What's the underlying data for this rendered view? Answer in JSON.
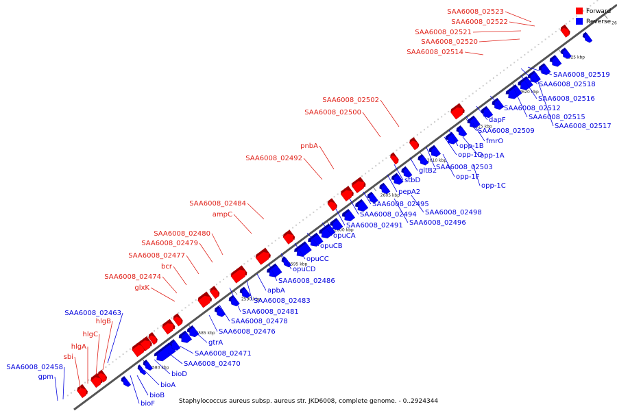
{
  "caption": "Staphylococcus aureus subsp. aureus str. JKD6008, complete genome. - 0..2924344",
  "legend": [
    {
      "label": "Forward",
      "color": "#ff0000"
    },
    {
      "label": "Reverse",
      "color": "#0000ff"
    }
  ],
  "ticks": [
    "2580 kbp",
    "2585 kbp",
    "2590 kbp",
    "2595 kbp",
    "2600 kbp",
    "2605 kbp",
    "2610 kbp",
    "2615 kbp",
    "2620 kbp",
    "2625 kbp",
    "2630 kbp",
    "2635 kbp",
    "2640 kbp",
    "2645 kbp",
    "2650 kbp"
  ],
  "forward_labels": [
    "SAA6008_02523",
    "SAA6008_02522",
    "SAA6008_02521",
    "SAA6008_02520",
    "SAA6008_02514",
    "SAA6008_02502",
    "SAA6008_02500",
    "pnbA",
    "SAA6008_02492",
    "SAA6008_02484",
    "ampC",
    "SAA6008_02480",
    "SAA6008_02479",
    "SAA6008_02477",
    "bcr",
    "SAA6008_02474",
    "glxK",
    "hlgB",
    "hlgC",
    "hlgA",
    "sbi"
  ],
  "reverse_labels": [
    "SAA6008_02463",
    "SAA6008_02458",
    "gpm",
    "bioF",
    "bioB",
    "bioA",
    "bioD",
    "SAA6008_02470",
    "SAA6008_02471",
    "gtrA",
    "SAA6008_02476",
    "SAA6008_02478",
    "SAA6008_02481",
    "SAA6008_02483",
    "apbA",
    "SAA6008_02486",
    "opuCD",
    "opuCC",
    "opuCB",
    "opuCA",
    "SAA6008_02491",
    "SAA6008_02494",
    "SAA6008_02495",
    "SAA6008_02496",
    "SAA6008_02498",
    "pepA2",
    "stbD",
    "gltB2",
    "opp-1F",
    "opp-1C",
    "SAA6008_02503",
    "opp-1A",
    "opp-1D",
    "opp-1B",
    "fmrO",
    "SAA6008_02509",
    "dapF",
    "SAA6008_02512",
    "SAA6008_02515",
    "SAA6008_02516",
    "SAA6008_02517",
    "SAA6008_02518",
    "SAA6008_02519"
  ]
}
